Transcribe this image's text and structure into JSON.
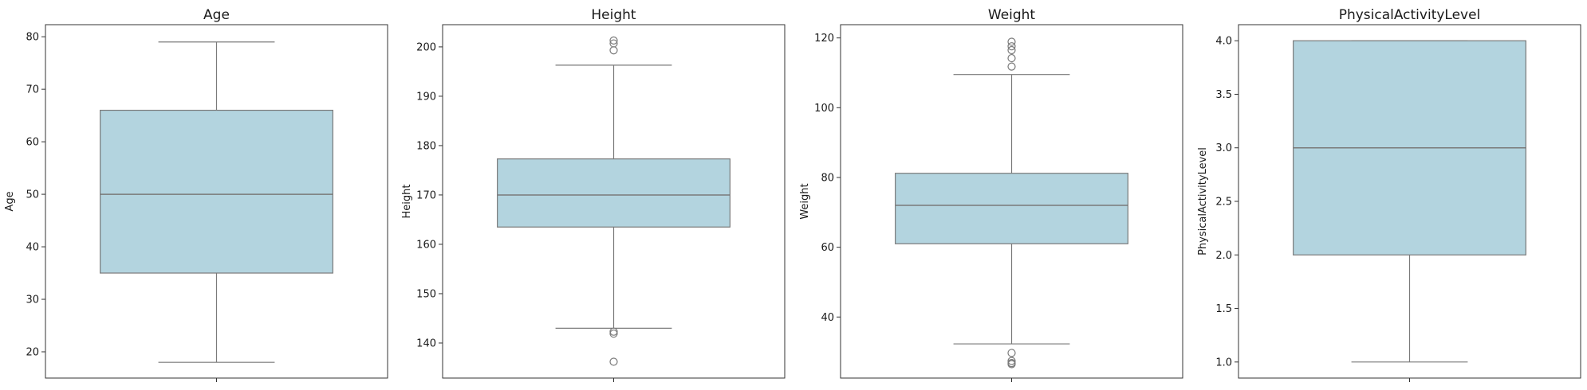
{
  "chart_data": [
    {
      "type": "box",
      "title": "Age",
      "ylabel": "Age",
      "ylim": [
        15.0,
        82.3
      ],
      "ticks": [
        20,
        30,
        40,
        50,
        60,
        70,
        80
      ],
      "tick_labels": [
        "20",
        "30",
        "40",
        "50",
        "60",
        "70",
        "80"
      ],
      "box_color": "#b3d4df",
      "stats": {
        "whislo": 18,
        "q1": 35,
        "med": 50,
        "q3": 66,
        "whishi": 79
      },
      "fliers": []
    },
    {
      "type": "box",
      "title": "Height",
      "ylabel": "Height",
      "ylim": [
        132.9,
        204.5
      ],
      "ticks": [
        140,
        150,
        160,
        170,
        180,
        190,
        200
      ],
      "tick_labels": [
        "140",
        "150",
        "160",
        "170",
        "180",
        "190",
        "200"
      ],
      "box_color": "#b3d4df",
      "stats": {
        "whislo": 143,
        "q1": 163.5,
        "med": 170,
        "q3": 177.3,
        "whishi": 196.3
      },
      "fliers": [
        136.2,
        142.3,
        141.9,
        199.3,
        200.7,
        201.3
      ]
    },
    {
      "type": "box",
      "title": "Weight",
      "ylabel": "Weight",
      "ylim": [
        22.5,
        123.8
      ],
      "ticks": [
        40,
        60,
        80,
        100,
        120
      ],
      "tick_labels": [
        "40",
        "60",
        "80",
        "100",
        "120"
      ],
      "box_color": "#b3d4df",
      "stats": {
        "whislo": 32.3,
        "q1": 61,
        "med": 72,
        "q3": 81.2,
        "whishi": 109.5
      },
      "fliers": [
        29.7,
        27.4,
        26.5,
        26.8,
        111.8,
        114.2,
        116.5,
        117.6,
        118.9
      ]
    },
    {
      "type": "box",
      "title": "PhysicalActivityLevel",
      "ylabel": "PhysicalActivityLevel",
      "ylim": [
        0.85,
        4.15
      ],
      "ticks": [
        1.0,
        1.5,
        2.0,
        2.5,
        3.0,
        3.5,
        4.0
      ],
      "tick_labels": [
        "1.0",
        "1.5",
        "2.0",
        "2.5",
        "3.0",
        "3.5",
        "4.0"
      ],
      "box_color": "#b3d4df",
      "stats": {
        "whislo": 1.0,
        "q1": 2.0,
        "med": 3.0,
        "q3": 4.0,
        "whishi": 4.0
      },
      "fliers": []
    }
  ]
}
